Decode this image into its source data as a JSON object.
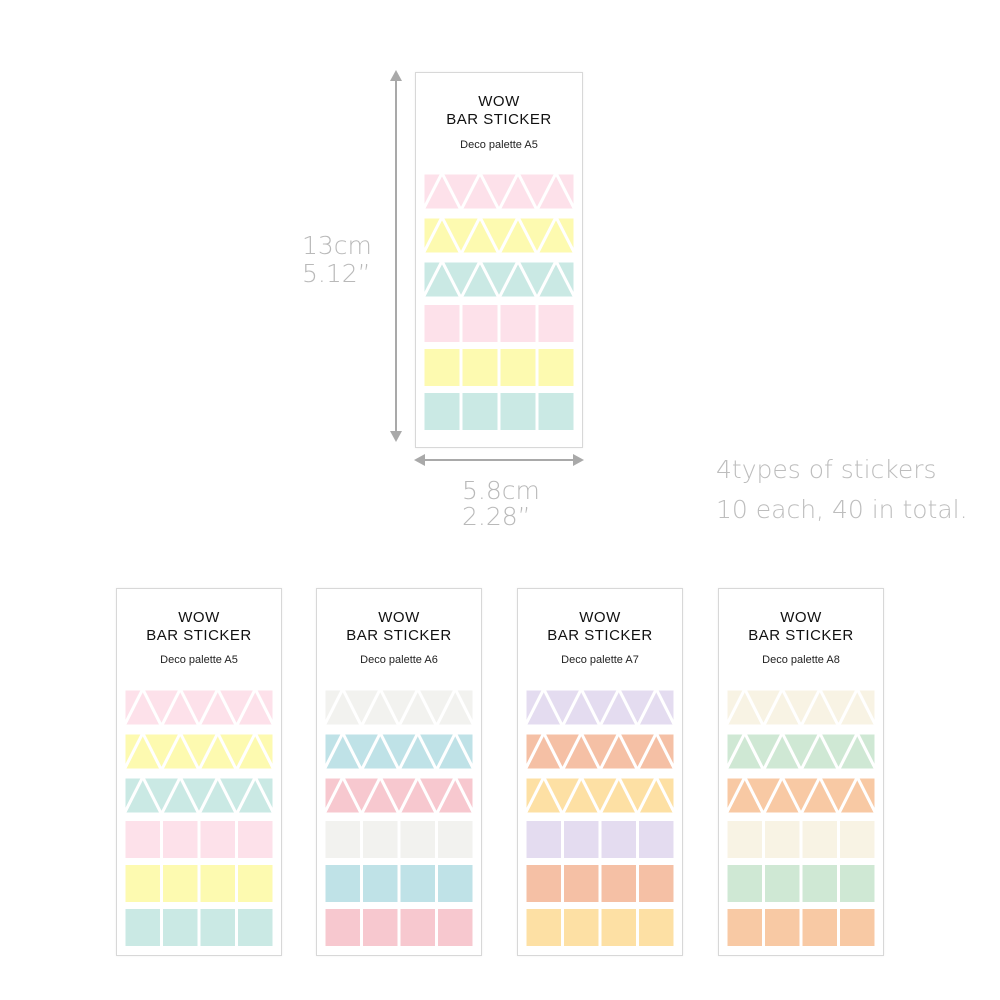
{
  "hero": {
    "title_line1": "WOW",
    "title_line2": "BAR STICKER",
    "subtitle": "Deco palette A5",
    "colors": [
      "#fde1ea",
      "#fdfab0",
      "#cae9e4"
    ]
  },
  "dimensions": {
    "height_cm": "13cm",
    "height_in": "5.12”",
    "width_cm": "5.8cm",
    "width_in": "2.28”"
  },
  "note": {
    "line1": "4types of stickers",
    "line2": "10 each, 40 in total."
  },
  "variants": [
    {
      "title_line1": "WOW",
      "title_line2": "BAR STICKER",
      "subtitle": "Deco palette A5",
      "colors": [
        "#fde1ea",
        "#fdfab0",
        "#cae9e4"
      ]
    },
    {
      "title_line1": "WOW",
      "title_line2": "BAR STICKER",
      "subtitle": "Deco palette A6",
      "colors": [
        "#f2f2ef",
        "#bfe2e7",
        "#f7c8cf"
      ]
    },
    {
      "title_line1": "WOW",
      "title_line2": "BAR STICKER",
      "subtitle": "Deco palette A7",
      "colors": [
        "#e4dcf0",
        "#f5c0a5",
        "#fde0a4"
      ]
    },
    {
      "title_line1": "WOW",
      "title_line2": "BAR STICKER",
      "subtitle": "Deco palette A8",
      "colors": [
        "#f8f3e4",
        "#cfe8d4",
        "#f8c9a4"
      ]
    }
  ]
}
